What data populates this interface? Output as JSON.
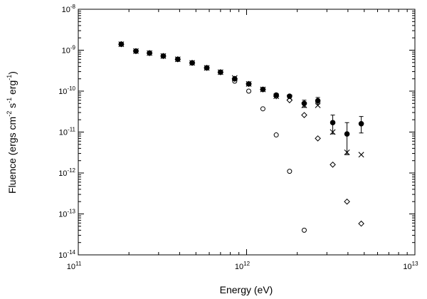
{
  "chart_data": {
    "type": "scatter",
    "title": "",
    "xlabel": "Energy (eV)",
    "ylabel_parts": [
      "Fluence (ergs cm",
      "-2",
      " s",
      "-1",
      " erg",
      "-1",
      ")"
    ],
    "xscale": "log",
    "yscale": "log",
    "xlim": [
      100000000000.0,
      10000000000000.0
    ],
    "ylim": [
      1e-14,
      1e-08
    ],
    "x_ticks": [
      {
        "base": "10",
        "exp": "11",
        "value": 100000000000.0
      },
      {
        "base": "10",
        "exp": "12",
        "value": 1000000000000.0
      },
      {
        "base": "10",
        "exp": "13",
        "value": 10000000000000.0
      }
    ],
    "y_ticks": [
      {
        "base": "10",
        "exp": "-14",
        "value": 1e-14
      },
      {
        "base": "10",
        "exp": "-13",
        "value": 1e-13
      },
      {
        "base": "10",
        "exp": "-12",
        "value": 1e-12
      },
      {
        "base": "10",
        "exp": "-11",
        "value": 1e-11
      },
      {
        "base": "10",
        "exp": "-10",
        "value": 1e-10
      },
      {
        "base": "10",
        "exp": "-9",
        "value": 1e-09
      },
      {
        "base": "10",
        "exp": "-8",
        "value": 1e-08
      }
    ],
    "series": [
      {
        "name": "filled-circle",
        "marker": "filled-circle",
        "points": [
          {
            "x": 180000000000.0,
            "y": 1.4e-09
          },
          {
            "x": 220000000000.0,
            "y": 9.5e-10
          },
          {
            "x": 265000000000.0,
            "y": 8.5e-10
          },
          {
            "x": 320000000000.0,
            "y": 7.2e-10
          },
          {
            "x": 390000000000.0,
            "y": 6e-10
          },
          {
            "x": 475000000000.0,
            "y": 4.9e-10
          },
          {
            "x": 580000000000.0,
            "y": 3.7e-10
          },
          {
            "x": 700000000000.0,
            "y": 2.9e-10
          },
          {
            "x": 850000000000.0,
            "y": 2e-10
          },
          {
            "x": 1030000000000.0,
            "y": 1.5e-10
          },
          {
            "x": 1250000000000.0,
            "y": 1.1e-10
          },
          {
            "x": 1500000000000.0,
            "y": 8e-11
          },
          {
            "x": 1800000000000.0,
            "y": 7.5e-11
          },
          {
            "x": 2200000000000.0,
            "y": 5e-11,
            "err_low": 4e-11,
            "err_high": 6e-11
          },
          {
            "x": 2650000000000.0,
            "y": 5.8e-11,
            "err_low": 4.8e-11,
            "err_high": 7e-11
          },
          {
            "x": 3250000000000.0,
            "y": 1.7e-11,
            "err_low": 9e-12,
            "err_high": 2.6e-11
          },
          {
            "x": 3950000000000.0,
            "y": 9e-12,
            "err_low": 2.8e-12,
            "err_high": 1.7e-11
          },
          {
            "x": 4800000000000.0,
            "y": 1.6e-11,
            "err_low": 9.5e-12,
            "err_high": 2.4e-11
          }
        ]
      },
      {
        "name": "cross",
        "marker": "x",
        "points": [
          {
            "x": 180000000000.0,
            "y": 1.4e-09
          },
          {
            "x": 220000000000.0,
            "y": 9.5e-10
          },
          {
            "x": 265000000000.0,
            "y": 8.5e-10
          },
          {
            "x": 320000000000.0,
            "y": 7.2e-10
          },
          {
            "x": 390000000000.0,
            "y": 6e-10
          },
          {
            "x": 475000000000.0,
            "y": 4.9e-10
          },
          {
            "x": 580000000000.0,
            "y": 3.7e-10
          },
          {
            "x": 700000000000.0,
            "y": 2.9e-10
          },
          {
            "x": 850000000000.0,
            "y": 2.1e-10
          },
          {
            "x": 1030000000000.0,
            "y": 1.5e-10
          },
          {
            "x": 1250000000000.0,
            "y": 1.1e-10
          },
          {
            "x": 1500000000000.0,
            "y": 7.5e-11
          },
          {
            "x": 1800000000000.0,
            "y": 7e-11
          },
          {
            "x": 2200000000000.0,
            "y": 4.5e-11
          },
          {
            "x": 2650000000000.0,
            "y": 4.5e-11
          },
          {
            "x": 3250000000000.0,
            "y": 1e-11
          },
          {
            "x": 3950000000000.0,
            "y": 3.2e-12
          },
          {
            "x": 4800000000000.0,
            "y": 2.8e-12
          }
        ]
      },
      {
        "name": "diamond",
        "marker": "open-diamond",
        "points": [
          {
            "x": 180000000000.0,
            "y": 1.4e-09
          },
          {
            "x": 220000000000.0,
            "y": 9.5e-10
          },
          {
            "x": 265000000000.0,
            "y": 8.5e-10
          },
          {
            "x": 320000000000.0,
            "y": 7.2e-10
          },
          {
            "x": 390000000000.0,
            "y": 6e-10
          },
          {
            "x": 475000000000.0,
            "y": 4.9e-10
          },
          {
            "x": 580000000000.0,
            "y": 3.7e-10
          },
          {
            "x": 700000000000.0,
            "y": 2.9e-10
          },
          {
            "x": 850000000000.0,
            "y": 2e-10
          },
          {
            "x": 1030000000000.0,
            "y": 1.5e-10
          },
          {
            "x": 1250000000000.0,
            "y": 1.1e-10
          },
          {
            "x": 1500000000000.0,
            "y": 7.5e-11
          },
          {
            "x": 1800000000000.0,
            "y": 6e-11
          },
          {
            "x": 2200000000000.0,
            "y": 2.6e-11
          },
          {
            "x": 2650000000000.0,
            "y": 7e-12
          },
          {
            "x": 3250000000000.0,
            "y": 1.6e-12
          },
          {
            "x": 3950000000000.0,
            "y": 2e-13
          },
          {
            "x": 4800000000000.0,
            "y": 5.8e-14
          }
        ]
      },
      {
        "name": "open-circle",
        "marker": "open-circle",
        "points": [
          {
            "x": 180000000000.0,
            "y": 1.4e-09
          },
          {
            "x": 220000000000.0,
            "y": 9.5e-10
          },
          {
            "x": 265000000000.0,
            "y": 8.5e-10
          },
          {
            "x": 320000000000.0,
            "y": 7.2e-10
          },
          {
            "x": 390000000000.0,
            "y": 6e-10
          },
          {
            "x": 475000000000.0,
            "y": 4.9e-10
          },
          {
            "x": 580000000000.0,
            "y": 3.7e-10
          },
          {
            "x": 700000000000.0,
            "y": 2.9e-10
          },
          {
            "x": 850000000000.0,
            "y": 1.75e-10
          },
          {
            "x": 1030000000000.0,
            "y": 1e-10
          },
          {
            "x": 1250000000000.0,
            "y": 3.7e-11
          },
          {
            "x": 1500000000000.0,
            "y": 8.5e-12
          },
          {
            "x": 1800000000000.0,
            "y": 1.1e-12
          },
          {
            "x": 2200000000000.0,
            "y": 4e-14
          }
        ]
      }
    ]
  }
}
